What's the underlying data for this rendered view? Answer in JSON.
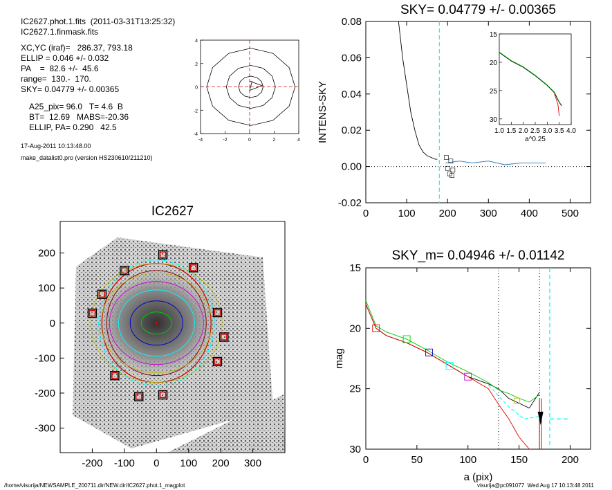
{
  "info": {
    "file_line": "IC2627.phot.1.fits  (2011-03-31T13:25:32)",
    "mask_line": "IC2627.1.finmask.fits",
    "xcyc": "XC,YC (iraf)=   286.37, 793.18",
    "ellip": "ELLIP = 0.046 +/- 0.032",
    "pa": "PA    =  82.6 +/-  45.6",
    "range": "range=  130.-  170.",
    "sky": "SKY= 0.04779 +/- 0.00365",
    "a25": "A25_pix= 96.0   T= 4.6  B",
    "bt": "BT=  12.69   MABS=-20.36",
    "ellip_pa": "ELLIP, PA= 0.290   42.5",
    "date": "17-Aug-2011 10:13:48.00",
    "program": "make_datalist0.pro (version HS230610/211210)"
  },
  "footer": {
    "left": "/home/visurija/NEWSAMPLE_200711.dir/NEW.dir/IC2627.phot.1_magplot",
    "right": "visurija@pc091077  Wed Aug 17 10:13:48 2011"
  },
  "colors": {
    "cyan": "#00ffff",
    "green": "#00cc00",
    "red": "#dd0000",
    "magenta": "#cc00cc",
    "blue": "#0000cc",
    "dark_red": "#8b0000"
  },
  "chart_data": [
    {
      "type": "line",
      "name": "center-shift",
      "title": "",
      "xlim": [
        -4,
        4
      ],
      "ylim": [
        -4,
        4
      ],
      "xticks": [
        "-4",
        "-2",
        "0",
        "2",
        "4"
      ],
      "yticks": [
        "-4",
        "-2",
        "0",
        "2",
        "4"
      ],
      "contours_radius": [
        1.0,
        2.0,
        3.6
      ]
    },
    {
      "type": "line",
      "name": "sky-profile",
      "title": "SKY= 0.04779 +/- 0.00365",
      "xlabel": "",
      "ylabel": "INTENS-SKY",
      "xlim": [
        0,
        550
      ],
      "ylim": [
        -0.02,
        0.08
      ],
      "xticks": [
        "0",
        "100",
        "200",
        "300",
        "400",
        "500"
      ],
      "yticks": [
        "-0.02",
        "0.00",
        "0.02",
        "0.04",
        "0.06",
        "0.08"
      ],
      "sky_marker_x": 180,
      "series": [
        {
          "color": "#000000",
          "x": [
            80,
            90,
            100,
            110,
            120,
            130,
            140,
            150,
            160,
            170,
            175
          ],
          "y": [
            0.08,
            0.06,
            0.045,
            0.03,
            0.02,
            0.012,
            0.008,
            0.006,
            0.005,
            0.004,
            0.004
          ]
        },
        {
          "color": "#1f77b4",
          "x": [
            195,
            230,
            260,
            300,
            340,
            380,
            440
          ],
          "y": [
            0.002,
            0.003,
            0.002,
            0.003,
            0.001,
            0.002,
            0.002
          ]
        }
      ],
      "inset": {
        "xlabel": "a^0.25",
        "xlim": [
          1.0,
          4.0
        ],
        "ylim": [
          15,
          31
        ],
        "xticks": [
          "1.0",
          "1.5",
          "2.0",
          "2.5",
          "3.0",
          "3.5",
          "4.0"
        ],
        "yticks": [
          "15",
          "20",
          "25",
          "30"
        ],
        "x": [
          1.0,
          1.5,
          2.0,
          2.5,
          3.0,
          3.3,
          3.5,
          3.6
        ],
        "y": [
          18.2,
          19.7,
          20.8,
          22.3,
          24.0,
          25.3,
          27.0,
          27.6
        ]
      }
    },
    {
      "type": "scatter",
      "name": "galaxy-image",
      "title": "IC2627",
      "xlim": [
        -300,
        400
      ],
      "ylim": [
        -370,
        290
      ],
      "xticks": [
        "-200",
        "-100",
        "0",
        "100",
        "200",
        "300"
      ],
      "yticks": [
        "-300",
        "-200",
        "-100",
        "0",
        "100",
        "200"
      ],
      "sky_regions": [
        [
          20,
          195
        ],
        [
          115,
          158
        ],
        [
          -100,
          150
        ],
        [
          -170,
          82
        ],
        [
          -200,
          28
        ],
        [
          190,
          30
        ],
        [
          210,
          -40
        ],
        [
          190,
          -110
        ],
        [
          -130,
          -150
        ],
        [
          -55,
          -210
        ],
        [
          20,
          -205
        ]
      ]
    },
    {
      "type": "line",
      "name": "magnitude-profile",
      "title": "SKY_m=  0.04946 +/- 0.01142",
      "xlabel": "a (pix)",
      "ylabel": "mag",
      "xlim": [
        0,
        220
      ],
      "ylim": [
        30,
        15
      ],
      "xticks": [
        "0",
        "50",
        "100",
        "150",
        "200"
      ],
      "yticks": [
        "15",
        "20",
        "25",
        "30"
      ],
      "range_lines": [
        130,
        170
      ],
      "sky_line": 180,
      "sky_mag": 27.5,
      "series": [
        {
          "color": "#000000",
          "x": [
            0,
            10,
            20,
            40,
            60,
            80,
            100,
            120,
            130,
            140,
            150,
            160,
            170
          ],
          "y": [
            18.0,
            20.0,
            20.6,
            21.2,
            22.0,
            23.0,
            24.0,
            24.6,
            25.0,
            25.8,
            26.2,
            26.6,
            25.3
          ]
        },
        {
          "color": "#00cc00",
          "x": [
            0,
            10,
            20,
            40,
            60,
            80,
            100,
            120,
            130,
            140,
            150,
            160,
            170
          ],
          "y": [
            17.7,
            19.8,
            20.3,
            20.9,
            21.8,
            22.8,
            23.6,
            24.5,
            25.1,
            25.4,
            25.8,
            26.1,
            25.5
          ]
        },
        {
          "color": "#dd0000",
          "x": [
            0,
            10,
            20,
            40,
            60,
            80,
            100,
            120,
            130,
            140,
            150,
            160
          ],
          "y": [
            18.0,
            20.0,
            20.6,
            21.2,
            22.0,
            23.0,
            24.0,
            25.0,
            26.3,
            27.5,
            29.0,
            30.0
          ]
        }
      ],
      "markers": [
        {
          "x": 10,
          "y": 20.0,
          "color": "#dd0000"
        },
        {
          "x": 40,
          "y": 20.9,
          "color": "#00cc00"
        },
        {
          "x": 62,
          "y": 22.0,
          "color": "#0000cc"
        },
        {
          "x": 82,
          "y": 23.1,
          "color": "#00ffff"
        },
        {
          "x": 100,
          "y": 24.0,
          "color": "#cc00cc"
        }
      ]
    }
  ]
}
